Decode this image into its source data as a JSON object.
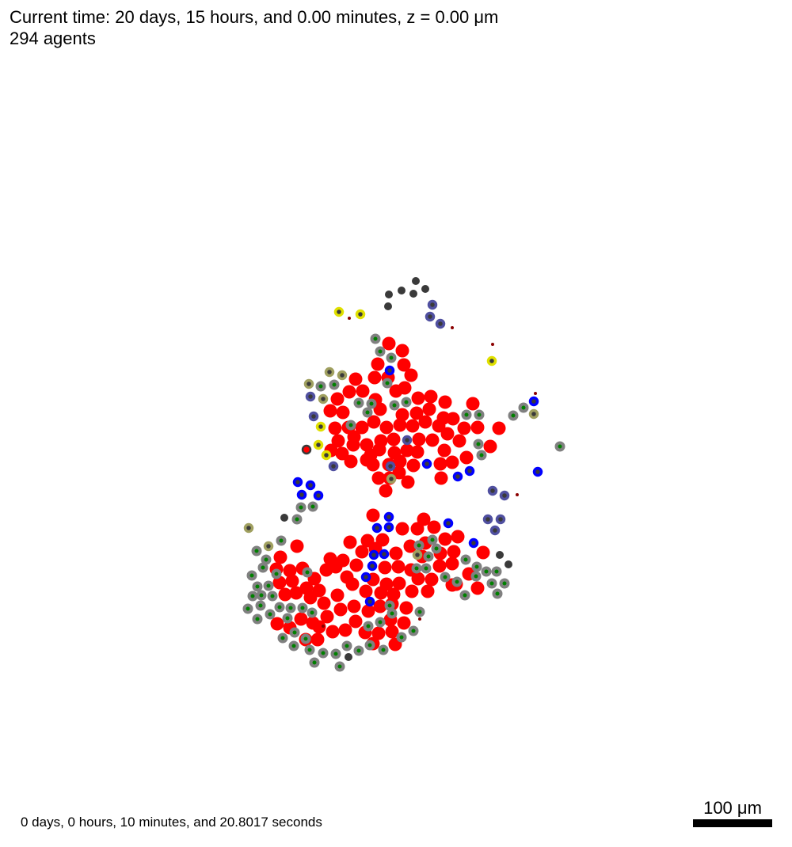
{
  "header": {
    "time_line": "Current time: 20 days, 15 hours, and 0.00 minutes, z = 0.00 μm",
    "agents_line": "294 agents"
  },
  "footer": {
    "runtime": "0 days, 0 hours, 10 minutes, and 20.8017 seconds"
  },
  "scale_bar": {
    "label": "100 μm",
    "length_um": 100
  },
  "colors": {
    "red_cell": "#ff0000",
    "green_core": "#008000",
    "gray_ring": "#808080",
    "dark_core": "#3a3a3a",
    "blue_ring": "#0000ff",
    "slate_ring": "#5050a0",
    "yellow_ring": "#e0e000",
    "olive_ring": "#a0a060",
    "debris": "#8b0000",
    "background": "#ffffff"
  }
}
